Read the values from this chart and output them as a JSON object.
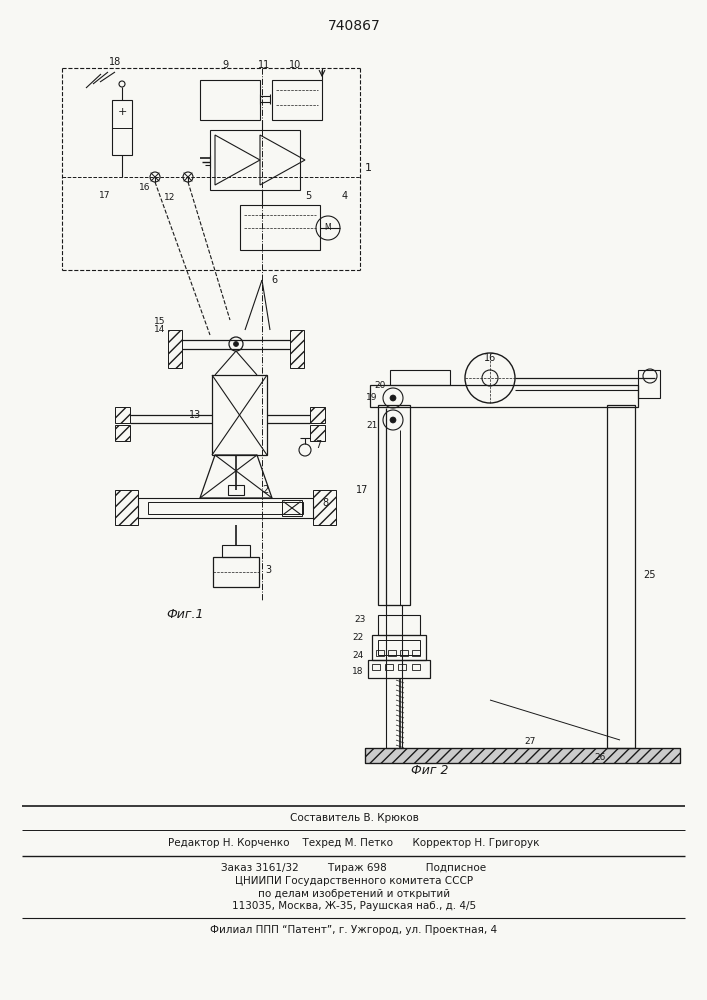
{
  "patent_number": "740867",
  "fig1_label": "Фиг.1",
  "fig2_label": "Фиг 2",
  "footer_lines": [
    "Составитель В. Крюков",
    "Редактор Н. Корченко    Техред М. Петко      Корректор Н. Григорук",
    "Заказ 3161/32         Тираж 698            Подписное",
    "ЦНИИПИ Государственного комитета СССР",
    "по делам изобретений и открытий",
    "113035, Москва, Ж-35, Раушская наб., д. 4/5",
    "Филиал ППП “Патент”, г. Ужгород, ул. Проектная, 4"
  ],
  "bg_color": "#f8f8f4",
  "line_color": "#1a1a1a"
}
